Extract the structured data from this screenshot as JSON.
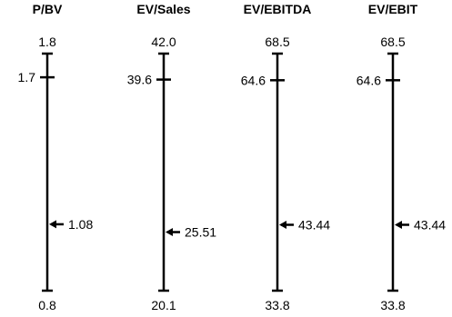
{
  "chart_data": {
    "type": "range",
    "colors": {
      "ink": "#000000",
      "background": "#ffffff"
    },
    "panels": [
      {
        "title": "P/BV",
        "max": 1.8,
        "min": 0.8,
        "max_label": "1.8",
        "min_label": "0.8",
        "marker": {
          "value": 1.7,
          "label": "1.7",
          "side": "left"
        },
        "arrow": {
          "value": 1.08,
          "label": "1.08",
          "side": "right"
        }
      },
      {
        "title": "EV/Sales",
        "max": 42.0,
        "min": 20.1,
        "max_label": "42.0",
        "min_label": "20.1",
        "marker": {
          "value": 39.6,
          "label": "39.6",
          "side": "left"
        },
        "arrow": {
          "value": 25.51,
          "label": "25.51",
          "side": "right"
        }
      },
      {
        "title": "EV/EBITDA",
        "max": 68.5,
        "min": 33.8,
        "max_label": "68.5",
        "min_label": "33.8",
        "marker": {
          "value": 64.6,
          "label": "64.6",
          "side": "left"
        },
        "arrow": {
          "value": 43.44,
          "label": "43.44",
          "side": "right"
        }
      },
      {
        "title": "EV/EBIT",
        "max": 68.5,
        "min": 33.8,
        "max_label": "68.5",
        "min_label": "33.8",
        "marker": {
          "value": 64.6,
          "label": "64.6",
          "side": "left"
        },
        "arrow": {
          "value": 43.44,
          "label": "43.44",
          "side": "right"
        }
      }
    ]
  }
}
